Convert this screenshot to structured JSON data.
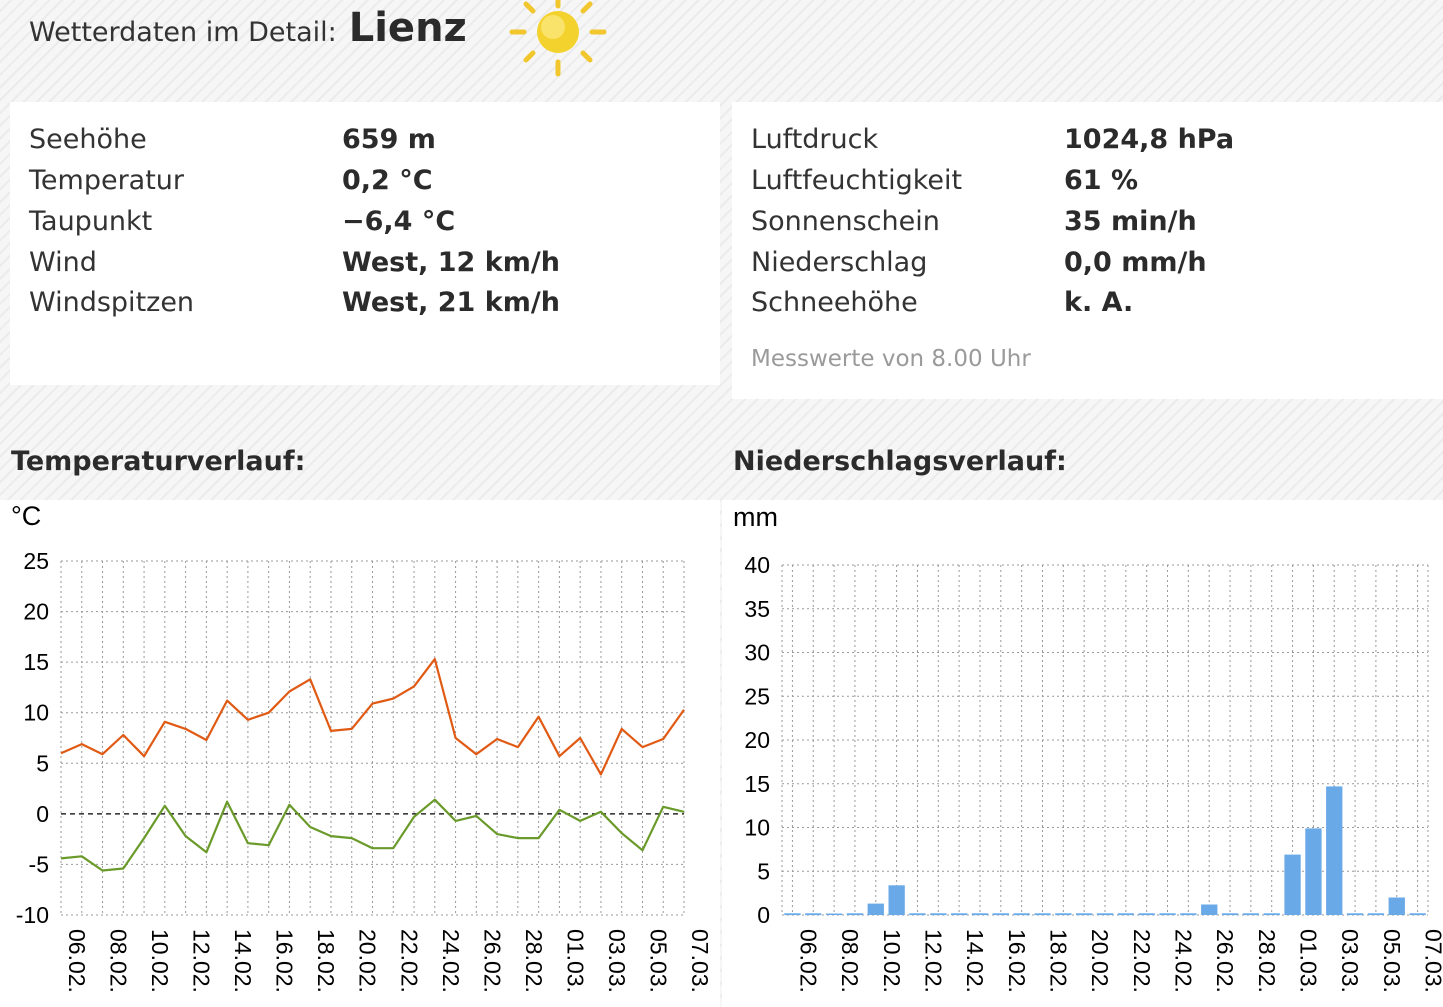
{
  "header": {
    "label": "Wetterdaten im Detail:",
    "city": "Lienz",
    "weather_icon": "sun-icon"
  },
  "left_panel": [
    {
      "key": "Seehöhe",
      "value": "659 m"
    },
    {
      "key": "Temperatur",
      "value": "0,2 °C"
    },
    {
      "key": "Taupunkt",
      "value": "−6,4 °C"
    },
    {
      "key": "Wind",
      "value": "West, 12 km/h"
    },
    {
      "key": "Windspitzen",
      "value": "West, 21 km/h"
    }
  ],
  "right_panel": [
    {
      "key": "Luftdruck",
      "value": "1024,8 hPa"
    },
    {
      "key": "Luftfeuchtigkeit",
      "value": "61 %"
    },
    {
      "key": "Sonnenschein",
      "value": "35 min/h"
    },
    {
      "key": "Niederschlag",
      "value": "0,0 mm/h"
    },
    {
      "key": "Schneehöhe",
      "value": "k. A."
    }
  ],
  "measurement_note": "Messwerte von 8.00 Uhr",
  "temp_title": "Temperaturverlauf:",
  "precip_title": "Niederschlagsverlauf:",
  "chart_data": [
    {
      "type": "line",
      "unit": "°C",
      "ylim": [
        -10,
        25
      ],
      "yticks": [
        25,
        20,
        15,
        10,
        5,
        0,
        -5,
        -10
      ],
      "x": [
        "06.02.",
        "07.02.",
        "08.02.",
        "09.02.",
        "10.02.",
        "11.02.",
        "12.02.",
        "13.02.",
        "14.02.",
        "15.02.",
        "16.02.",
        "17.02.",
        "18.02.",
        "19.02.",
        "20.02.",
        "21.02.",
        "22.02.",
        "23.02.",
        "24.02.",
        "25.02.",
        "26.02.",
        "27.02.",
        "28.02.",
        "29.02.",
        "01.03.",
        "02.03.",
        "03.03.",
        "04.03.",
        "05.03.",
        "06.03.",
        "07.03."
      ],
      "xticks": [
        "06.02.",
        "08.02.",
        "10.02.",
        "12.02.",
        "14.02.",
        "16.02.",
        "18.02.",
        "20.02.",
        "22.02.",
        "24.02.",
        "26.02.",
        "28.02.",
        "01.03.",
        "03.03.",
        "05.03.",
        "07.03."
      ],
      "zero_line": "dashed",
      "grid": true,
      "series": [
        {
          "color": "#e05a14",
          "values": [
            6.0,
            6.9,
            5.9,
            7.8,
            5.7,
            9.1,
            8.4,
            7.3,
            11.2,
            9.3,
            10.0,
            12.1,
            13.3,
            8.2,
            8.4,
            10.9,
            11.4,
            12.6,
            15.3,
            7.5,
            5.9,
            7.4,
            6.6,
            9.6,
            5.7,
            7.5,
            3.9,
            8.4,
            6.6,
            7.4,
            10.3
          ]
        },
        {
          "color": "#6a9a2a",
          "values": [
            -4.4,
            -4.2,
            -5.6,
            -5.4,
            -2.4,
            0.8,
            -2.2,
            -3.8,
            1.2,
            -2.9,
            -3.1,
            0.9,
            -1.3,
            -2.2,
            -2.4,
            -3.4,
            -3.4,
            -0.3,
            1.4,
            -0.7,
            -0.2,
            -2.0,
            -2.4,
            -2.4,
            0.4,
            -0.7,
            0.2,
            -1.9,
            -3.6,
            0.7,
            0.2
          ]
        }
      ]
    },
    {
      "type": "bar",
      "unit": "mm",
      "ylim": [
        0,
        40
      ],
      "yticks": [
        40,
        35,
        30,
        25,
        20,
        15,
        10,
        5,
        0
      ],
      "color": "#6aa9e8",
      "grid": true,
      "categories": [
        "06.02.",
        "07.02.",
        "08.02.",
        "09.02.",
        "10.02.",
        "11.02.",
        "12.02.",
        "13.02.",
        "14.02.",
        "15.02.",
        "16.02.",
        "17.02.",
        "18.02.",
        "19.02.",
        "20.02.",
        "21.02.",
        "22.02.",
        "23.02.",
        "24.02.",
        "25.02.",
        "26.02.",
        "27.02.",
        "28.02.",
        "29.02.",
        "01.03.",
        "02.03.",
        "03.03.",
        "04.03.",
        "05.03.",
        "06.03.",
        "07.03."
      ],
      "xticks": [
        "06.02.",
        "08.02.",
        "10.02.",
        "12.02.",
        "14.02.",
        "16.02.",
        "18.02.",
        "20.02.",
        "22.02.",
        "24.02.",
        "26.02.",
        "28.02.",
        "01.03.",
        "03.03.",
        "05.03.",
        "07.03."
      ],
      "values": [
        0.2,
        0.2,
        0.1,
        0.2,
        1.3,
        3.4,
        0.2,
        0.2,
        0.2,
        0.2,
        0.2,
        0.2,
        0.2,
        0.2,
        0.2,
        0.2,
        0.2,
        0.2,
        0.2,
        0.2,
        1.2,
        0.2,
        0.2,
        0.2,
        6.9,
        9.9,
        14.7,
        0.2,
        0.2,
        2.0,
        0.2
      ]
    }
  ]
}
